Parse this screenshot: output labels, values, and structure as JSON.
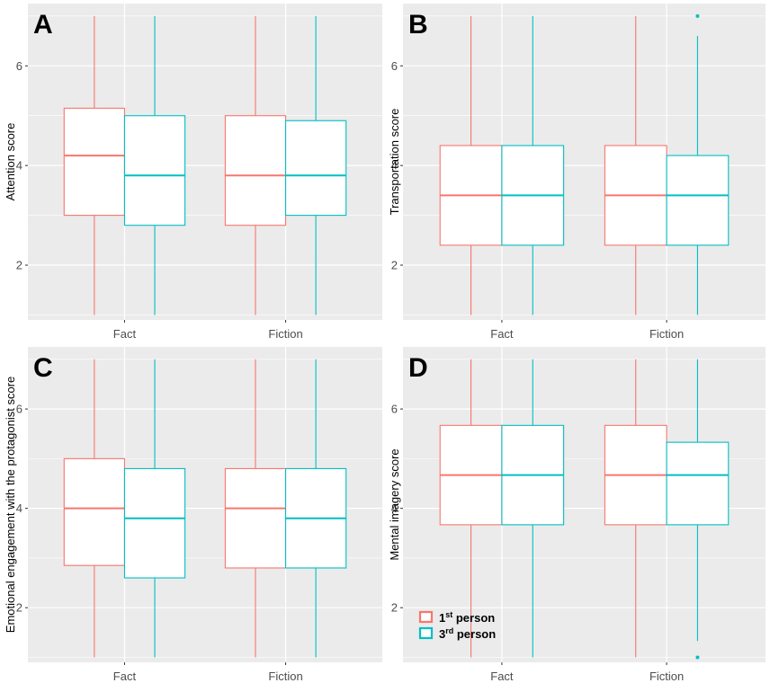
{
  "colors": {
    "first_person": "#F8766D",
    "third_person": "#00BFC4",
    "panel_bg": "#EBEBEB",
    "grid": "#FFFFFF"
  },
  "legend": {
    "items": [
      {
        "base": "1",
        "sup": "st",
        "rest": " person",
        "color_key": "first_person"
      },
      {
        "base": "3",
        "sup": "rd",
        "rest": " person",
        "color_key": "third_person"
      }
    ]
  },
  "chart_data": [
    {
      "panel": "A",
      "type": "boxplot",
      "ylabel": "Attention score",
      "categories": [
        "Fact",
        "Fiction"
      ],
      "ylim": [
        0.9,
        7.25
      ],
      "yticks": [
        2,
        4,
        6
      ],
      "series": [
        {
          "name": "1st person",
          "color_key": "first_person",
          "boxes": [
            {
              "category": "Fact",
              "min": 1.0,
              "q1": 3.0,
              "median": 4.2,
              "q3": 5.15,
              "max": 7.0,
              "outliers": []
            },
            {
              "category": "Fiction",
              "min": 1.0,
              "q1": 2.8,
              "median": 3.8,
              "q3": 5.0,
              "max": 7.0,
              "outliers": []
            }
          ]
        },
        {
          "name": "3rd person",
          "color_key": "third_person",
          "boxes": [
            {
              "category": "Fact",
              "min": 1.0,
              "q1": 2.8,
              "median": 3.8,
              "q3": 5.0,
              "max": 7.0,
              "outliers": []
            },
            {
              "category": "Fiction",
              "min": 1.0,
              "q1": 3.0,
              "median": 3.8,
              "q3": 4.9,
              "max": 7.0,
              "outliers": []
            }
          ]
        }
      ]
    },
    {
      "panel": "B",
      "type": "boxplot",
      "ylabel": "Transportation score",
      "categories": [
        "Fact",
        "Fiction"
      ],
      "ylim": [
        0.9,
        7.25
      ],
      "yticks": [
        2,
        4,
        6
      ],
      "series": [
        {
          "name": "1st person",
          "color_key": "first_person",
          "boxes": [
            {
              "category": "Fact",
              "min": 1.0,
              "q1": 2.4,
              "median": 3.4,
              "q3": 4.4,
              "max": 7.0,
              "outliers": []
            },
            {
              "category": "Fiction",
              "min": 1.0,
              "q1": 2.4,
              "median": 3.4,
              "q3": 4.4,
              "max": 7.0,
              "outliers": []
            }
          ]
        },
        {
          "name": "3rd person",
          "color_key": "third_person",
          "boxes": [
            {
              "category": "Fact",
              "min": 1.0,
              "q1": 2.4,
              "median": 3.4,
              "q3": 4.4,
              "max": 7.0,
              "outliers": []
            },
            {
              "category": "Fiction",
              "min": 1.0,
              "q1": 2.4,
              "median": 3.4,
              "q3": 4.2,
              "max": 6.6,
              "outliers": [
                7.0
              ]
            }
          ]
        }
      ]
    },
    {
      "panel": "C",
      "type": "boxplot",
      "ylabel": "Emotional engagement with the protagonist score",
      "categories": [
        "Fact",
        "Fiction"
      ],
      "ylim": [
        0.9,
        7.25
      ],
      "yticks": [
        2,
        4,
        6
      ],
      "series": [
        {
          "name": "1st person",
          "color_key": "first_person",
          "boxes": [
            {
              "category": "Fact",
              "min": 1.0,
              "q1": 2.85,
              "median": 4.0,
              "q3": 5.0,
              "max": 7.0,
              "outliers": []
            },
            {
              "category": "Fiction",
              "min": 1.0,
              "q1": 2.8,
              "median": 4.0,
              "q3": 4.8,
              "max": 7.0,
              "outliers": []
            }
          ]
        },
        {
          "name": "3rd person",
          "color_key": "third_person",
          "boxes": [
            {
              "category": "Fact",
              "min": 1.0,
              "q1": 2.6,
              "median": 3.8,
              "q3": 4.8,
              "max": 7.0,
              "outliers": []
            },
            {
              "category": "Fiction",
              "min": 1.0,
              "q1": 2.8,
              "median": 3.8,
              "q3": 4.8,
              "max": 7.0,
              "outliers": []
            }
          ]
        }
      ]
    },
    {
      "panel": "D",
      "type": "boxplot",
      "ylabel": "Mental imagery score",
      "categories": [
        "Fact",
        "Fiction"
      ],
      "ylim": [
        0.9,
        7.25
      ],
      "yticks": [
        2,
        4,
        6
      ],
      "series": [
        {
          "name": "1st person",
          "color_key": "first_person",
          "boxes": [
            {
              "category": "Fact",
              "min": 1.0,
              "q1": 3.67,
              "median": 4.67,
              "q3": 5.67,
              "max": 7.0,
              "outliers": []
            },
            {
              "category": "Fiction",
              "min": 1.0,
              "q1": 3.67,
              "median": 4.67,
              "q3": 5.67,
              "max": 7.0,
              "outliers": []
            }
          ]
        },
        {
          "name": "3rd person",
          "color_key": "third_person",
          "boxes": [
            {
              "category": "Fact",
              "min": 1.0,
              "q1": 3.67,
              "median": 4.67,
              "q3": 5.67,
              "max": 7.0,
              "outliers": []
            },
            {
              "category": "Fiction",
              "min": 1.33,
              "q1": 3.67,
              "median": 4.67,
              "q3": 5.33,
              "max": 7.0,
              "outliers": [
                1.0
              ]
            }
          ]
        }
      ]
    }
  ]
}
